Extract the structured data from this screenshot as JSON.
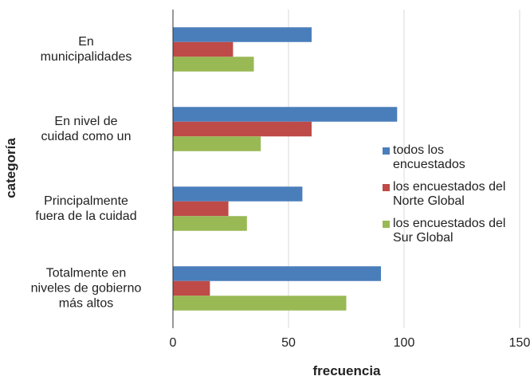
{
  "chart_data": {
    "type": "barh",
    "xlabel": "frecuencia",
    "ylabel": "categoría",
    "categories": [
      "En\nmunicipalidades",
      "En nivel de\ncuidad como un",
      "Principalmente\nfuera de la cuidad",
      "Totalmente en\nniveles de gobierno\nmás altos"
    ],
    "series": [
      {
        "name": "todos los encuestados",
        "color": "#4a7ebb",
        "values": [
          60,
          97,
          56,
          90
        ]
      },
      {
        "name": "los encuestados del Norte Global",
        "color": "#be4b48",
        "values": [
          26,
          60,
          24,
          16
        ]
      },
      {
        "name": "los encuestados del Sur Global",
        "color": "#98b954",
        "values": [
          35,
          38,
          32,
          75
        ]
      }
    ],
    "xlim": [
      0,
      150
    ],
    "xticks": [
      0,
      50,
      100,
      150
    ],
    "grid": true,
    "legend": "right"
  }
}
